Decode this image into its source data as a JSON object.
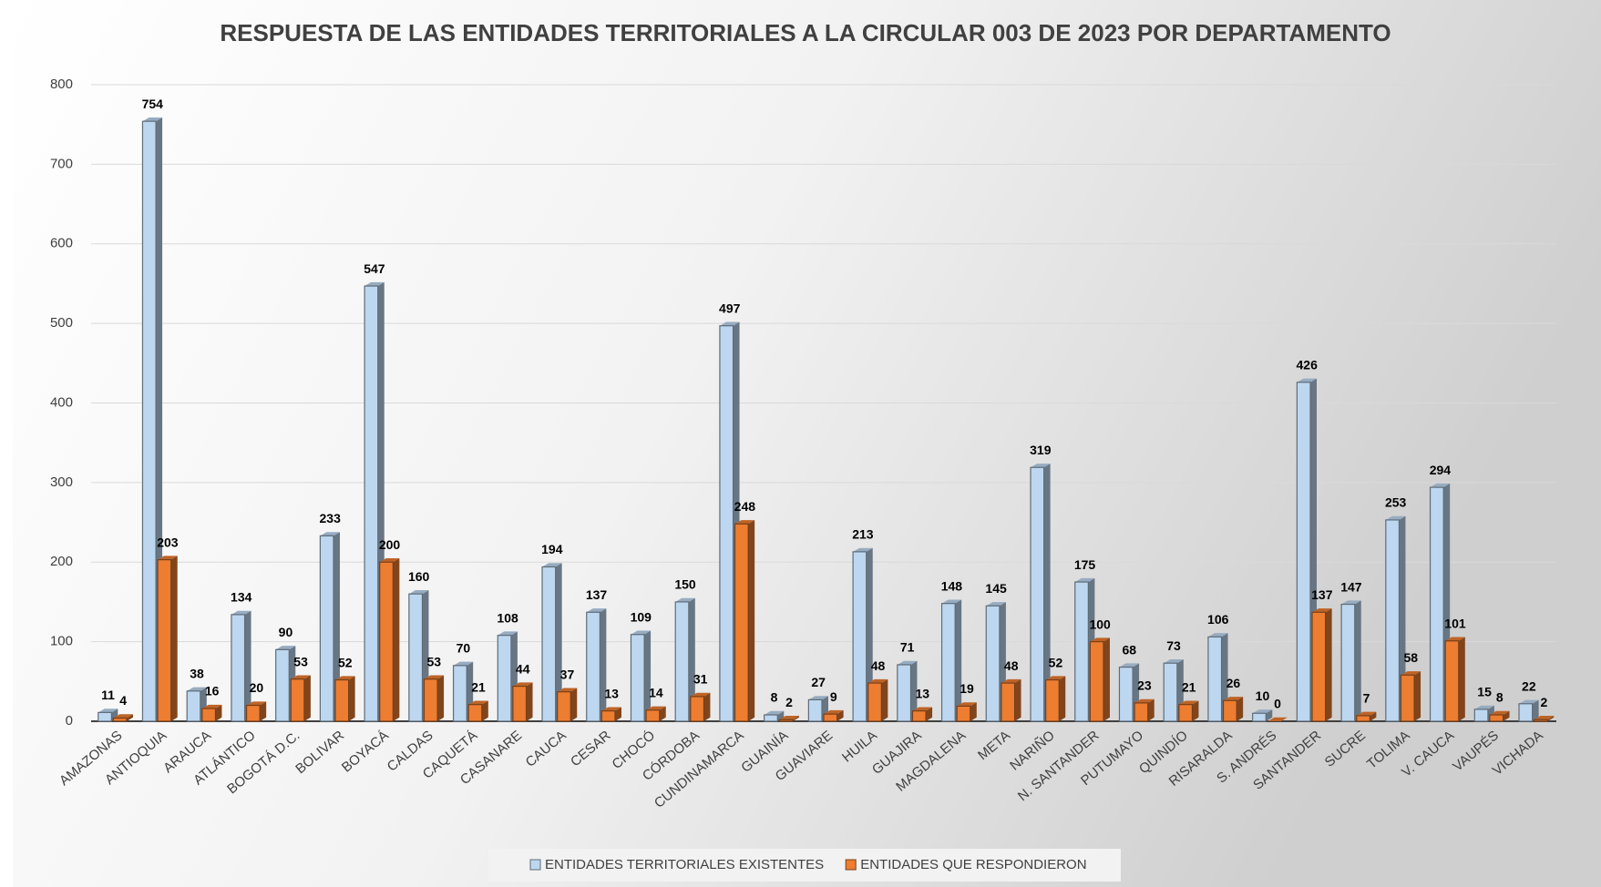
{
  "chart_data": {
    "type": "bar",
    "title": "RESPUESTA DE LAS ENTIDADES TERRITORIALES A LA CIRCULAR 003 DE 2023 POR DEPARTAMENTO",
    "categories": [
      "AMAZONAS",
      "ANTIOQUIA",
      "ARAUCA",
      "ATLÁNTICO",
      "BOGOTÁ D.C.",
      "BOLIVAR",
      "BOYACÁ",
      "CALDAS",
      "CAQUETÁ",
      "CASANARE",
      "CAUCA",
      "CESAR",
      "CHOCÓ",
      "CÓRDOBA",
      "CUNDINAMARCA",
      "GUAINÍA",
      "GUAVIARE",
      "HUILA",
      "GUAJIRA",
      "MAGDALENA",
      "META",
      "NARIÑO",
      "N. SANTANDER",
      "PUTUMAYO",
      "QUINDÍO",
      "RISARALDA",
      "S. ANDRÉS",
      "SANTANDER",
      "SUCRE",
      "TOLIMA",
      "V. CAUCA",
      "VAUPÉS",
      "VICHADA"
    ],
    "series": [
      {
        "name": "ENTIDADES TERRITORIALES EXISTENTES",
        "color": "#bdd7f0",
        "values": [
          11,
          754,
          38,
          134,
          90,
          233,
          547,
          160,
          70,
          108,
          194,
          137,
          109,
          150,
          497,
          8,
          27,
          213,
          71,
          148,
          145,
          319,
          175,
          68,
          73,
          106,
          10,
          426,
          147,
          253,
          294,
          15,
          22
        ]
      },
      {
        "name": "ENTIDADES QUE RESPONDIERON",
        "color": "#ed7d31",
        "values": [
          4,
          203,
          16,
          20,
          53,
          52,
          200,
          53,
          21,
          44,
          37,
          13,
          14,
          31,
          248,
          2,
          9,
          48,
          13,
          19,
          48,
          52,
          100,
          23,
          21,
          26,
          0,
          137,
          7,
          58,
          101,
          8,
          2
        ]
      }
    ],
    "ylim": [
      0,
      800
    ],
    "yticks": [
      0,
      100,
      200,
      300,
      400,
      500,
      600,
      700,
      800
    ],
    "grid": true,
    "legend": "bottom"
  }
}
